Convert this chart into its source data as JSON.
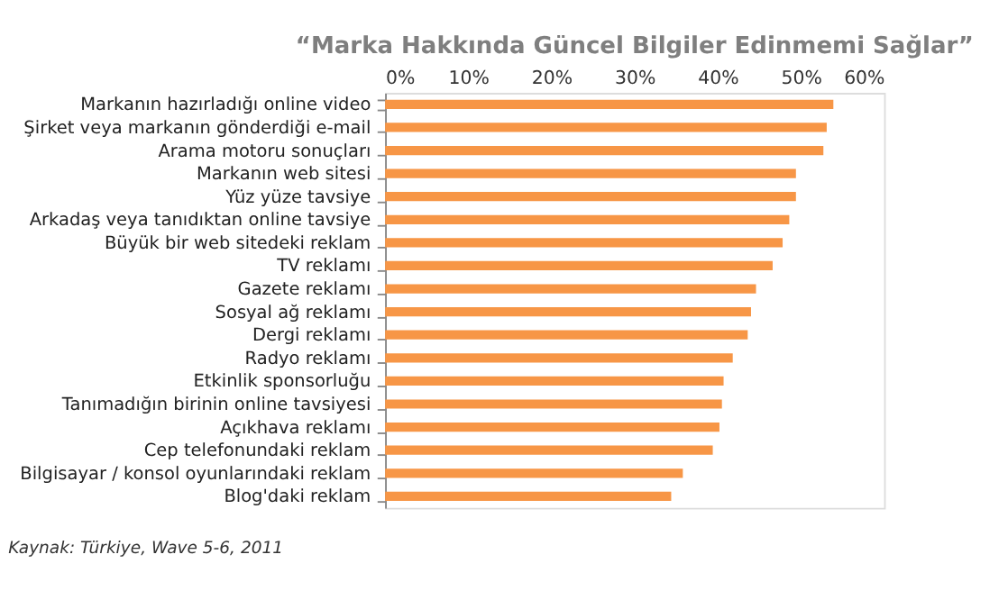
{
  "chart_data": {
    "type": "bar",
    "orientation": "horizontal",
    "title": "“Marka Hakkında Güncel Bilgiler Edinmemi Sağlar”",
    "categories": [
      "Markanın hazırladığı online video",
      "Şirket veya markanın gönderdiği e-mail",
      "Arama motoru sonuçları",
      "Markanın web sitesi",
      "Yüz yüze tavsiye",
      "Arkadaş veya tanıdıktan online tavsiye",
      "Büyük bir web sitedeki reklam",
      "TV reklamı",
      "Gazete reklamı",
      "Sosyal ağ reklamı",
      "Dergi reklamı",
      "Radyo reklamı",
      "Etkinlik sponsorluğu",
      "Tanımadığın birinin online tavsiyesi",
      "Açıkhava reklamı",
      "Cep telefonundaki reklam",
      "Bilgisayar / konsol oyunlarındaki reklam",
      "Blog'daki reklam"
    ],
    "values": [
      53.9,
      53.1,
      52.7,
      49.4,
      49.4,
      48.6,
      47.8,
      46.6,
      44.6,
      44.0,
      43.6,
      41.8,
      40.7,
      40.5,
      40.2,
      39.4,
      35.8,
      34.4
    ],
    "color": "#f79646",
    "xlim": [
      0,
      60
    ],
    "xticks": [
      {
        "value": 0,
        "label": "0%"
      },
      {
        "value": 10,
        "label": "10%"
      },
      {
        "value": 20,
        "label": "20%"
      },
      {
        "value": 30,
        "label": "30%"
      },
      {
        "value": 40,
        "label": "40%"
      },
      {
        "value": 50,
        "label": "50%"
      },
      {
        "value": 60,
        "label": "60%"
      }
    ],
    "grid": false,
    "annotations": [
      "Kaynak: Türkiye, Wave 5-6, 2011"
    ]
  }
}
